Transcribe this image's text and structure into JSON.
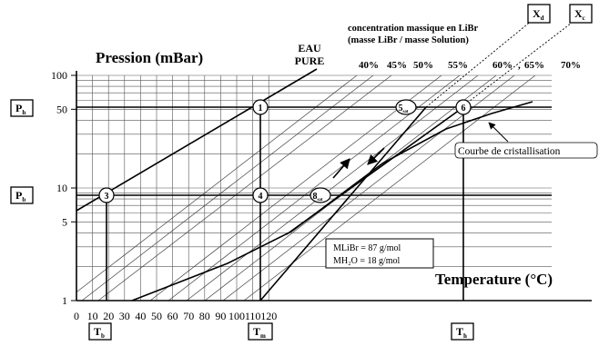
{
  "axes": {
    "y_title": "Pression (mBar)",
    "x_title": "Temperature (°C)",
    "y_scale": "log",
    "y_ticks": [
      {
        "value": 1,
        "label": "1"
      },
      {
        "value": 5,
        "label": "5"
      },
      {
        "value": 10,
        "label": "10"
      },
      {
        "value": 50,
        "label": "50"
      },
      {
        "value": 100,
        "label": "100"
      }
    ],
    "x_ticks": [
      "0",
      "10",
      "20",
      "30",
      "40",
      "50",
      "60",
      "70",
      "80",
      "90",
      "100",
      "110",
      "120"
    ]
  },
  "header": {
    "concentration_title": "concentration massique en LiBr",
    "concentration_sub": "(masse LiBr / masse Solution)",
    "pure_water_line1": "EAU",
    "pure_water_line2": "PURE",
    "concentration_labels": [
      "40%",
      "45%",
      "50%",
      "55%",
      "60%",
      "65%",
      "70%"
    ],
    "concentration_separators": [
      "",
      ",",
      ""
    ]
  },
  "boxes": {
    "p_high": {
      "main": "P",
      "sub": "h"
    },
    "p_low": {
      "main": "P",
      "sub": "b"
    },
    "t_low": {
      "main": "T",
      "sub": "b"
    },
    "t_mid": {
      "main": "T",
      "sub": "m"
    },
    "t_high": {
      "main": "T",
      "sub": "h"
    },
    "x_d": {
      "main": "X",
      "sub": "d"
    },
    "x_c": {
      "main": "X",
      "sub": "c"
    }
  },
  "points": {
    "p1": "1",
    "p3": "3",
    "p4": "4",
    "p6": "6",
    "p5": {
      "main": "5",
      "sub": "sat"
    },
    "p8": {
      "main": "8",
      "sub": "sat"
    }
  },
  "annotations": {
    "crystallisation": "Courbe de cristallisation",
    "molar_mass_1": "MLiBr = 87 g/mol",
    "molar_mass_2": "MH₂O = 18 g/mol"
  },
  "colors": {
    "ink": "#000000",
    "grid": "#555555",
    "paper": "#ffffff"
  }
}
